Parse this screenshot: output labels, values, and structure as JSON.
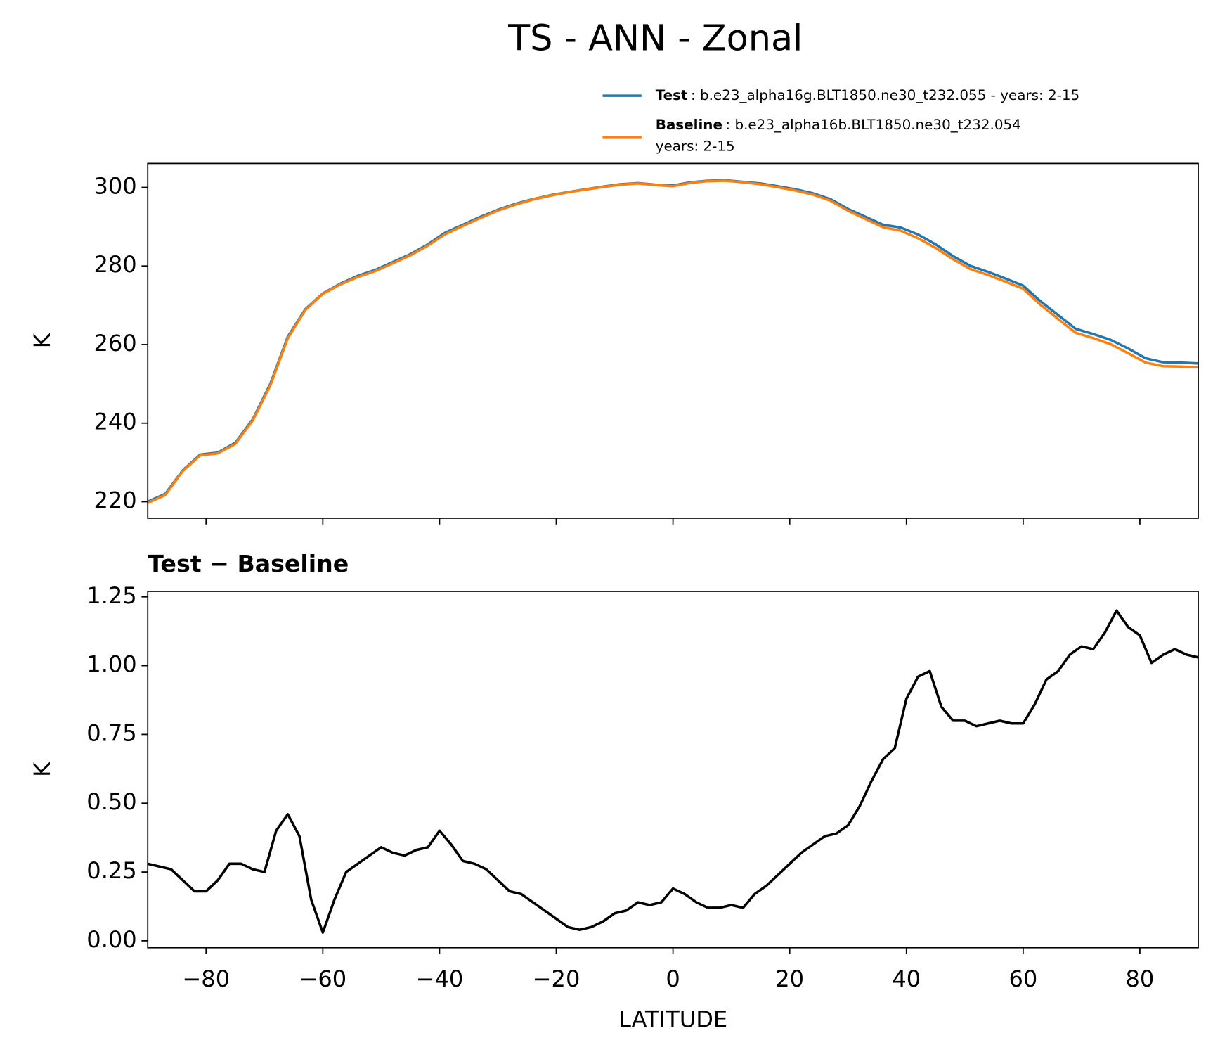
{
  "title": "TS - ANN - Zonal",
  "chart_data": [
    {
      "type": "line",
      "ylabel": "K",
      "x": [
        -90,
        -87,
        -84,
        -81,
        -78,
        -75,
        -72,
        -69,
        -66,
        -63,
        -60,
        -57,
        -54,
        -51,
        -48,
        -45,
        -42,
        -39,
        -36,
        -33,
        -30,
        -27,
        -24,
        -21,
        -18,
        -15,
        -12,
        -9,
        -6,
        -3,
        0,
        3,
        6,
        9,
        12,
        15,
        18,
        21,
        24,
        27,
        30,
        33,
        36,
        39,
        42,
        45,
        48,
        51,
        54,
        57,
        60,
        63,
        66,
        69,
        72,
        75,
        78,
        81,
        84,
        87,
        90
      ],
      "series": [
        {
          "name": "Test",
          "label_lines": [
            ": b.e23_alpha16g.BLT1850.ne30_t232.055 - years: 2-15"
          ],
          "color": "#1f77b4",
          "values": [
            220,
            222,
            228,
            232,
            232.5,
            235,
            241,
            250,
            262,
            269,
            273,
            275.5,
            277.5,
            279,
            281,
            283,
            285.5,
            288.5,
            290.5,
            292.5,
            294.3,
            295.8,
            297,
            298,
            298.8,
            299.5,
            300.2,
            300.8,
            301.1,
            300.7,
            300.5,
            301.3,
            301.7,
            301.8,
            301.4,
            301,
            300.3,
            299.5,
            298.5,
            297,
            294.5,
            292.5,
            290.5,
            289.8,
            288,
            285.5,
            282.5,
            280,
            278.5,
            276.8,
            275,
            271,
            267.5,
            264,
            262.7,
            261.2,
            259,
            256.5,
            255.5,
            255.4,
            255.2
          ]
        },
        {
          "name": "Baseline",
          "label_lines": [
            ": b.e23_alpha16b.BLT1850.ne30_t232.054",
            "years: 2-15"
          ],
          "color": "#ff7f0e",
          "values": [
            219.7,
            221.7,
            227.8,
            231.8,
            232.3,
            234.7,
            240.7,
            249.6,
            261.6,
            268.8,
            272.9,
            275.3,
            277.2,
            278.7,
            280.7,
            282.7,
            285.2,
            288.1,
            290.2,
            292.2,
            294.1,
            295.6,
            296.9,
            297.9,
            298.75,
            299.45,
            300.1,
            300.7,
            301,
            300.6,
            300.3,
            301.15,
            301.6,
            301.7,
            301.3,
            300.8,
            300.05,
            299.2,
            298.15,
            296.6,
            294.05,
            291.95,
            289.85,
            289.0,
            287.05,
            284.6,
            281.7,
            279.2,
            277.7,
            276.0,
            274.2,
            270.1,
            266.5,
            263.0,
            261.65,
            260.1,
            257.8,
            255.4,
            254.5,
            254.4,
            254.2
          ]
        }
      ],
      "xlim": [
        -90,
        90
      ],
      "ylim": [
        215.8,
        306.1
      ],
      "yticks": [
        220,
        240,
        260,
        280,
        300
      ]
    },
    {
      "type": "line",
      "title": "Test − Baseline",
      "xlabel": "LATITUDE",
      "ylabel": "K",
      "x": [
        -90,
        -88,
        -86,
        -84,
        -82,
        -80,
        -78,
        -76,
        -74,
        -72,
        -70,
        -68,
        -66,
        -64,
        -62,
        -60,
        -58,
        -56,
        -54,
        -52,
        -50,
        -48,
        -46,
        -44,
        -42,
        -40,
        -38,
        -36,
        -34,
        -32,
        -30,
        -28,
        -26,
        -24,
        -22,
        -20,
        -18,
        -16,
        -14,
        -12,
        -10,
        -8,
        -6,
        -4,
        -2,
        0,
        2,
        4,
        6,
        8,
        10,
        12,
        14,
        16,
        18,
        20,
        22,
        24,
        26,
        28,
        30,
        32,
        34,
        36,
        38,
        40,
        42,
        44,
        46,
        48,
        50,
        52,
        54,
        56,
        58,
        60,
        62,
        64,
        66,
        68,
        70,
        72,
        74,
        76,
        78,
        80,
        82,
        84,
        86,
        88,
        90
      ],
      "series": [
        {
          "name": "Test − Baseline",
          "color": "#000000",
          "values": [
            0.28,
            0.27,
            0.26,
            0.22,
            0.18,
            0.18,
            0.22,
            0.28,
            0.28,
            0.26,
            0.25,
            0.4,
            0.46,
            0.38,
            0.15,
            0.03,
            0.15,
            0.25,
            0.28,
            0.31,
            0.34,
            0.32,
            0.31,
            0.33,
            0.34,
            0.4,
            0.35,
            0.29,
            0.28,
            0.26,
            0.22,
            0.18,
            0.17,
            0.14,
            0.11,
            0.08,
            0.05,
            0.04,
            0.05,
            0.07,
            0.1,
            0.11,
            0.14,
            0.13,
            0.14,
            0.19,
            0.17,
            0.14,
            0.12,
            0.12,
            0.13,
            0.12,
            0.17,
            0.2,
            0.24,
            0.28,
            0.32,
            0.35,
            0.38,
            0.39,
            0.42,
            0.49,
            0.58,
            0.66,
            0.7,
            0.88,
            0.96,
            0.98,
            0.85,
            0.8,
            0.8,
            0.78,
            0.79,
            0.8,
            0.79,
            0.79,
            0.86,
            0.95,
            0.98,
            1.04,
            1.07,
            1.06,
            1.12,
            1.2,
            1.14,
            1.11,
            1.01,
            1.04,
            1.06,
            1.04,
            1.03
          ]
        }
      ],
      "xlim": [
        -90,
        90
      ],
      "ylim": [
        -0.025,
        1.27
      ],
      "xticks": [
        {
          "value": -80,
          "label": "−80"
        },
        {
          "value": -60,
          "label": "−60"
        },
        {
          "value": -40,
          "label": "−40"
        },
        {
          "value": -20,
          "label": "−20"
        },
        0,
        20,
        40,
        60,
        80
      ],
      "yticks": [
        {
          "value": 0,
          "label": "0.00"
        },
        0.25,
        {
          "value": 0.5,
          "label": "0.50"
        },
        0.75,
        {
          "value": 1,
          "label": "1.00"
        },
        1.25
      ]
    }
  ]
}
